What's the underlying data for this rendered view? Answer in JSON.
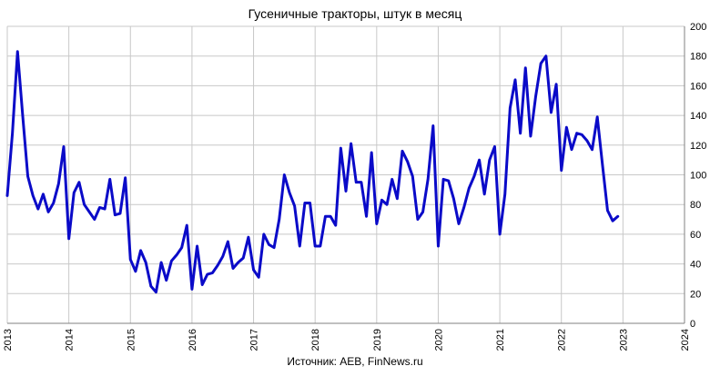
{
  "chart_data": {
    "type": "line",
    "title": "Гусеничные тракторы, штук в месяц",
    "source": "Источник: AEB, FinNews.ru",
    "xlabel": "",
    "ylabel": "",
    "xlim": [
      2013,
      2024
    ],
    "ylim": [
      0,
      200
    ],
    "y_ticks": [
      0,
      20,
      40,
      60,
      80,
      100,
      120,
      140,
      160,
      180,
      200
    ],
    "x_ticks": [
      2013,
      2014,
      2015,
      2016,
      2017,
      2018,
      2019,
      2020,
      2021,
      2022,
      2023,
      2024
    ],
    "y_axis_side": "right",
    "x_tick_label_rotation": -90,
    "grid": true,
    "line_color": "#0a0ac8",
    "series": [
      {
        "name": "",
        "x_start": "2013-01",
        "values": [
          86,
          128,
          183,
          140,
          99,
          86,
          77,
          87,
          75,
          81,
          94,
          119,
          57,
          88,
          95,
          80,
          75,
          70,
          78,
          77,
          97,
          73,
          74,
          98,
          43,
          35,
          49,
          41,
          25,
          21,
          41,
          29,
          42,
          46,
          51,
          66,
          23,
          52,
          26,
          33,
          34,
          39,
          45,
          55,
          37,
          41,
          44,
          58,
          36,
          31,
          60,
          53,
          51,
          70,
          100,
          88,
          79,
          52,
          81,
          81,
          52,
          52,
          72,
          72,
          66,
          118,
          89,
          121,
          95,
          95,
          72,
          115,
          67,
          83,
          80,
          97,
          84,
          116,
          109,
          99,
          70,
          75,
          97,
          133,
          52,
          97,
          96,
          84,
          67,
          78,
          91,
          99,
          110,
          87,
          110,
          119,
          60,
          87,
          145,
          164,
          128,
          172,
          126,
          153,
          175,
          180,
          142,
          161,
          103,
          132,
          117,
          128,
          127,
          123,
          117,
          139,
          107,
          76,
          69,
          72
        ]
      }
    ]
  }
}
